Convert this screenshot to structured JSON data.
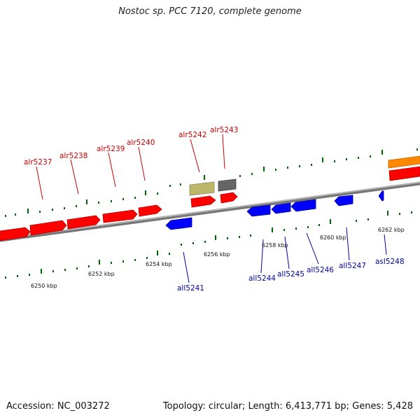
{
  "title": "Nostoc sp. PCC 7120, complete genome",
  "footer": {
    "accession": "Accession: NC_003272",
    "summary": "Topology: circular; Length: 6,413,771 bp; Genes: 5,428"
  },
  "colors": {
    "forward_gene": "#ff0000",
    "reverse_gene": "#0000ff",
    "forward_label": "#cc0000",
    "reverse_label": "#0000aa",
    "tick": "#006600",
    "backbone": "#888888",
    "orange_feature": "#ff8800",
    "khaki_feature": "#bdb76b",
    "gray_feature": "#666666"
  },
  "scale_labels": [
    "6250 kbp",
    "6252 kbp",
    "6254 kbp",
    "6256 kbp",
    "6258 kbp",
    "6260 kbp",
    "6262 kbp"
  ],
  "forward_labels": [
    "alr5237",
    "alr5238",
    "alr5239",
    "alr5240",
    "alr5242",
    "alr5243"
  ],
  "reverse_labels": [
    "all5241",
    "all5244",
    "all5245",
    "all5246",
    "all5247",
    "asl5248"
  ]
}
